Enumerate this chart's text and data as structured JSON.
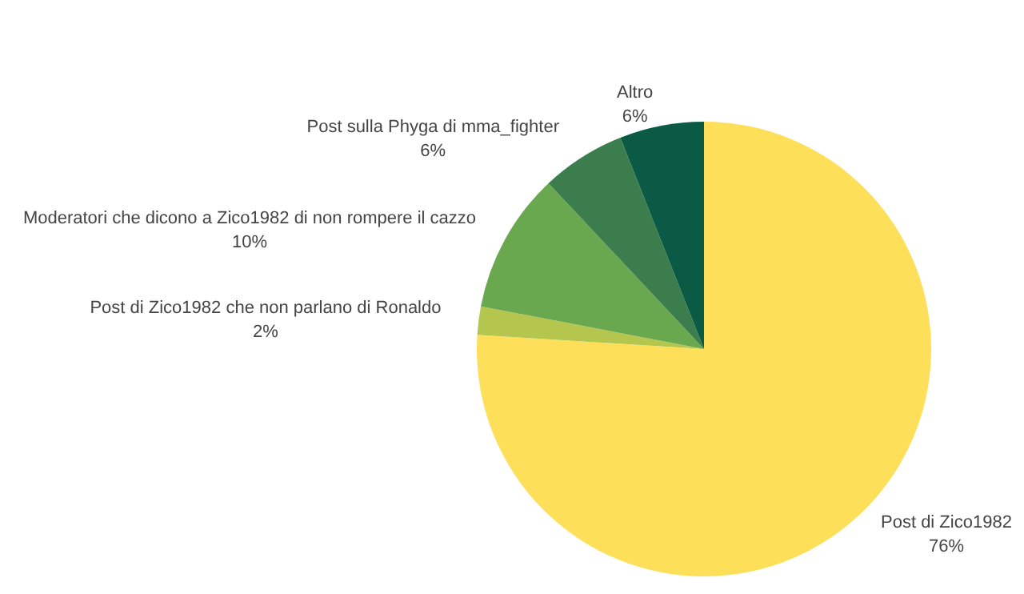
{
  "chart_data": {
    "type": "pie",
    "categories": [
      "Post di Zico1982",
      "Post di Zico1982 che non parlano di Ronaldo",
      "Moderatori che dicono a Zico1982 di non rompere il cazzo",
      "Post sulla Phyga di mma_fighter",
      "Altro"
    ],
    "values": [
      76,
      2,
      10,
      6,
      6
    ],
    "colors": [
      "#fddf5a",
      "#b4c64e",
      "#6aa84f",
      "#3b7d4c",
      "#0b5a45"
    ],
    "value_labels": [
      "76%",
      "2%",
      "10%",
      "6%",
      "6%"
    ]
  }
}
